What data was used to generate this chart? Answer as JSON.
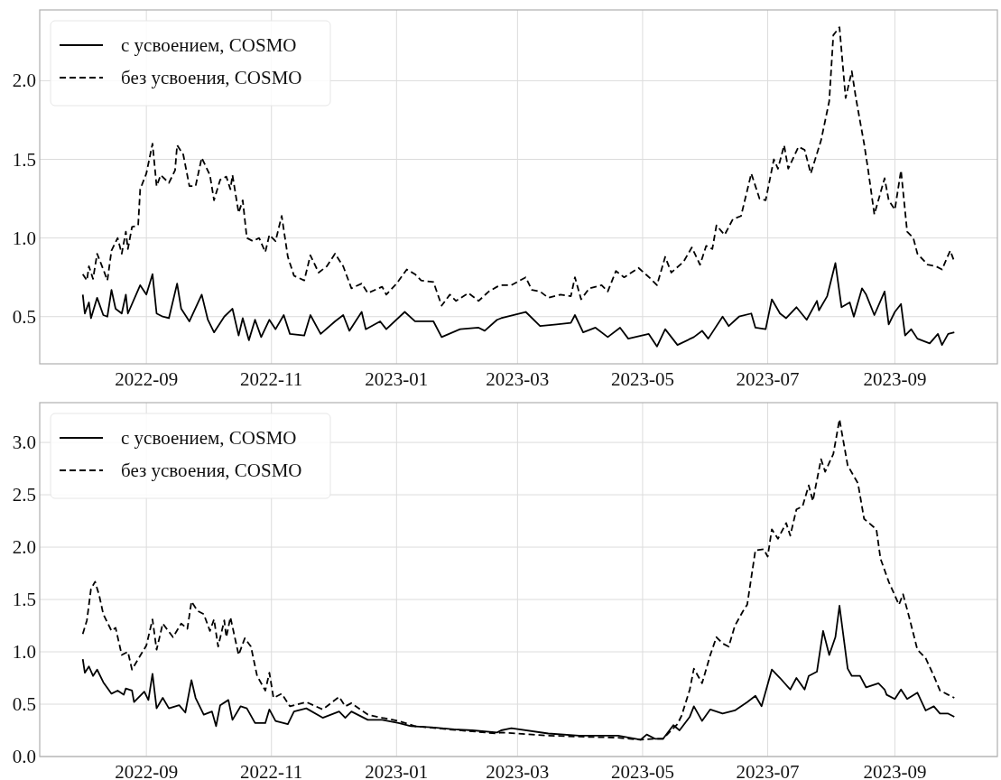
{
  "chart_data": [
    {
      "type": "line",
      "xlim": [
        "2022-07-11",
        "2023-10-21"
      ],
      "ylim": [
        0.2,
        2.45
      ],
      "xticks": [
        "2022-09",
        "2022-11",
        "2023-01",
        "2023-03",
        "2023-05",
        "2023-07",
        "2023-09"
      ],
      "yticks": [
        {
          "value": 0.5,
          "label": "0.5"
        },
        {
          "value": 1,
          "label": "1.0"
        },
        {
          "value": 1.5,
          "label": "1.5"
        },
        {
          "value": 2,
          "label": "2.0"
        }
      ],
      "grid": true,
      "legend": "top left",
      "series": [
        {
          "name": "с усвоением, COSMO",
          "color": "#000000",
          "line_style": "solid",
          "x": [
            "2022-08-01",
            "2022-08-02",
            "2022-08-04",
            "2022-08-05",
            "2022-08-08",
            "2022-08-11",
            "2022-08-13",
            "2022-08-15",
            "2022-08-17",
            "2022-08-20",
            "2022-08-22",
            "2022-08-23",
            "2022-08-29",
            "2022-09-01",
            "2022-09-04",
            "2022-09-06",
            "2022-09-09",
            "2022-09-12",
            "2022-09-16",
            "2022-09-18",
            "2022-09-22",
            "2022-09-28",
            "2022-10-01",
            "2022-10-04",
            "2022-10-09",
            "2022-10-13",
            "2022-10-16",
            "2022-10-18",
            "2022-10-21",
            "2022-10-24",
            "2022-10-27",
            "2022-10-31",
            "2022-11-03",
            "2022-11-07",
            "2022-11-10",
            "2022-11-17",
            "2022-11-20",
            "2022-11-25",
            "2022-12-02",
            "2022-12-06",
            "2022-12-09",
            "2022-12-15",
            "2022-12-17",
            "2022-12-24",
            "2022-12-27",
            "2023-01-05",
            "2023-01-10",
            "2023-01-19",
            "2023-01-23",
            "2023-02-01",
            "2023-02-10",
            "2023-02-13",
            "2023-02-19",
            "2023-02-21",
            "2023-03-05",
            "2023-03-12",
            "2023-03-20",
            "2023-03-27",
            "2023-03-29",
            "2023-04-02",
            "2023-04-08",
            "2023-04-14",
            "2023-04-20",
            "2023-04-24",
            "2023-05-04",
            "2023-05-08",
            "2023-05-12",
            "2023-05-18",
            "2023-05-26",
            "2023-05-30",
            "2023-06-02",
            "2023-06-09",
            "2023-06-12",
            "2023-06-17",
            "2023-06-23",
            "2023-06-25",
            "2023-06-30",
            "2023-07-03",
            "2023-07-07",
            "2023-07-10",
            "2023-07-15",
            "2023-07-20",
            "2023-07-25",
            "2023-07-26",
            "2023-07-30",
            "2023-08-03",
            "2023-08-06",
            "2023-08-10",
            "2023-08-12",
            "2023-08-16",
            "2023-08-18",
            "2023-08-22",
            "2023-08-27",
            "2023-08-29",
            "2023-09-01",
            "2023-09-04",
            "2023-09-06",
            "2023-09-09",
            "2023-09-12",
            "2023-09-18",
            "2023-09-22",
            "2023-09-24",
            "2023-09-27",
            "2023-09-30"
          ],
          "values": [
            0.64,
            0.52,
            0.59,
            0.49,
            0.62,
            0.51,
            0.5,
            0.67,
            0.55,
            0.52,
            0.64,
            0.52,
            0.7,
            0.64,
            0.77,
            0.52,
            0.5,
            0.49,
            0.71,
            0.55,
            0.47,
            0.64,
            0.48,
            0.4,
            0.5,
            0.55,
            0.38,
            0.49,
            0.35,
            0.48,
            0.37,
            0.48,
            0.42,
            0.51,
            0.39,
            0.38,
            0.51,
            0.39,
            0.47,
            0.51,
            0.41,
            0.53,
            0.42,
            0.47,
            0.42,
            0.53,
            0.47,
            0.47,
            0.37,
            0.42,
            0.43,
            0.41,
            0.48,
            0.49,
            0.53,
            0.44,
            0.45,
            0.46,
            0.51,
            0.4,
            0.43,
            0.37,
            0.43,
            0.36,
            0.39,
            0.31,
            0.42,
            0.32,
            0.37,
            0.41,
            0.36,
            0.5,
            0.44,
            0.5,
            0.52,
            0.43,
            0.42,
            0.61,
            0.52,
            0.49,
            0.56,
            0.48,
            0.6,
            0.54,
            0.63,
            0.84,
            0.56,
            0.59,
            0.5,
            0.68,
            0.64,
            0.51,
            0.66,
            0.45,
            0.53,
            0.58,
            0.38,
            0.42,
            0.36,
            0.33,
            0.39,
            0.32,
            0.39,
            0.4
          ]
        },
        {
          "name": "без усвоения, COSMO",
          "color": "#000000",
          "line_style": "dashed",
          "x": [
            "2022-08-01",
            "2022-08-03",
            "2022-08-04",
            "2022-08-06",
            "2022-08-08",
            "2022-08-11",
            "2022-08-13",
            "2022-08-15",
            "2022-08-18",
            "2022-08-20",
            "2022-08-22",
            "2022-08-23",
            "2022-08-25",
            "2022-08-28",
            "2022-08-29",
            "2022-09-01",
            "2022-09-04",
            "2022-09-06",
            "2022-09-08",
            "2022-09-12",
            "2022-09-15",
            "2022-09-16",
            "2022-09-19",
            "2022-09-22",
            "2022-09-25",
            "2022-09-28",
            "2022-10-02",
            "2022-10-04",
            "2022-10-07",
            "2022-10-10",
            "2022-10-12",
            "2022-10-13",
            "2022-10-16",
            "2022-10-18",
            "2022-10-20",
            "2022-10-23",
            "2022-10-26",
            "2022-10-29",
            "2022-10-31",
            "2022-11-03",
            "2022-11-06",
            "2022-11-09",
            "2022-11-12",
            "2022-11-17",
            "2022-11-20",
            "2022-11-24",
            "2022-11-28",
            "2022-12-02",
            "2022-12-06",
            "2022-12-10",
            "2022-12-15",
            "2022-12-18",
            "2022-12-25",
            "2022-12-27",
            "2023-01-01",
            "2023-01-06",
            "2023-01-10",
            "2023-01-13",
            "2023-01-19",
            "2023-01-23",
            "2023-01-27",
            "2023-01-30",
            "2023-02-05",
            "2023-02-10",
            "2023-02-15",
            "2023-02-19",
            "2023-02-21",
            "2023-02-26",
            "2023-03-05",
            "2023-03-08",
            "2023-03-12",
            "2023-03-16",
            "2023-03-22",
            "2023-03-27",
            "2023-03-29",
            "2023-04-01",
            "2023-04-05",
            "2023-04-11",
            "2023-04-14",
            "2023-04-18",
            "2023-04-22",
            "2023-04-29",
            "2023-05-05",
            "2023-05-08",
            "2023-05-12",
            "2023-05-15",
            "2023-05-21",
            "2023-05-25",
            "2023-05-29",
            "2023-06-01",
            "2023-06-04",
            "2023-06-06",
            "2023-06-10",
            "2023-06-14",
            "2023-06-18",
            "2023-06-23",
            "2023-06-27",
            "2023-06-30",
            "2023-07-04",
            "2023-07-06",
            "2023-07-09",
            "2023-07-11",
            "2023-07-16",
            "2023-07-19",
            "2023-07-22",
            "2023-07-27",
            "2023-07-31",
            "2023-08-02",
            "2023-08-05",
            "2023-08-08",
            "2023-08-11",
            "2023-08-13",
            "2023-08-17",
            "2023-08-19",
            "2023-08-22",
            "2023-08-27",
            "2023-08-29",
            "2023-09-01",
            "2023-09-04",
            "2023-09-07",
            "2023-09-10",
            "2023-09-12",
            "2023-09-17",
            "2023-09-21",
            "2023-09-24",
            "2023-09-28",
            "2023-09-30"
          ],
          "values": [
            0.77,
            0.73,
            0.82,
            0.74,
            0.9,
            0.8,
            0.73,
            0.92,
            1.0,
            0.9,
            1.04,
            0.93,
            1.07,
            1.08,
            1.31,
            1.41,
            1.6,
            1.33,
            1.4,
            1.35,
            1.43,
            1.59,
            1.53,
            1.33,
            1.33,
            1.51,
            1.4,
            1.24,
            1.37,
            1.39,
            1.31,
            1.4,
            1.16,
            1.24,
            1.0,
            0.98,
            1.0,
            0.91,
            1.02,
            0.98,
            1.14,
            0.88,
            0.76,
            0.73,
            0.89,
            0.78,
            0.82,
            0.9,
            0.82,
            0.68,
            0.71,
            0.65,
            0.69,
            0.64,
            0.71,
            0.8,
            0.77,
            0.73,
            0.72,
            0.57,
            0.64,
            0.6,
            0.65,
            0.6,
            0.66,
            0.69,
            0.7,
            0.7,
            0.75,
            0.67,
            0.66,
            0.62,
            0.64,
            0.63,
            0.75,
            0.61,
            0.68,
            0.7,
            0.66,
            0.79,
            0.75,
            0.81,
            0.74,
            0.7,
            0.88,
            0.78,
            0.85,
            0.94,
            0.83,
            0.95,
            0.93,
            1.08,
            1.02,
            1.12,
            1.14,
            1.41,
            1.25,
            1.24,
            1.5,
            1.44,
            1.59,
            1.44,
            1.58,
            1.56,
            1.41,
            1.62,
            1.87,
            2.29,
            2.34,
            1.89,
            2.06,
            1.89,
            1.6,
            1.43,
            1.15,
            1.38,
            1.24,
            1.18,
            1.43,
            1.04,
            1.0,
            0.9,
            0.83,
            0.82,
            0.8,
            0.92,
            0.85
          ]
        }
      ]
    },
    {
      "type": "line",
      "xlim": [
        "2022-07-11",
        "2023-10-21"
      ],
      "ylim": [
        0,
        3.38
      ],
      "xticks": [
        "2022-09",
        "2022-11",
        "2023-01",
        "2023-03",
        "2023-05",
        "2023-07",
        "2023-09"
      ],
      "yticks": [
        {
          "value": 0,
          "label": "0.0"
        },
        {
          "value": 0.5,
          "label": "0.5"
        },
        {
          "value": 1,
          "label": "1.0"
        },
        {
          "value": 1.5,
          "label": "1.5"
        },
        {
          "value": 2,
          "label": "2.0"
        },
        {
          "value": 2.5,
          "label": "2.5"
        },
        {
          "value": 3,
          "label": "3.0"
        }
      ],
      "grid": true,
      "legend": "top left",
      "series": [
        {
          "name": "с усвоением, COSMO",
          "color": "#000000",
          "line_style": "solid",
          "x": [
            "2022-08-01",
            "2022-08-02",
            "2022-08-04",
            "2022-08-06",
            "2022-08-08",
            "2022-08-11",
            "2022-08-15",
            "2022-08-18",
            "2022-08-21",
            "2022-08-22",
            "2022-08-25",
            "2022-08-26",
            "2022-08-31",
            "2022-09-02",
            "2022-09-04",
            "2022-09-06",
            "2022-09-09",
            "2022-09-12",
            "2022-09-17",
            "2022-09-20",
            "2022-09-23",
            "2022-09-25",
            "2022-09-29",
            "2022-10-03",
            "2022-10-05",
            "2022-10-07",
            "2022-10-11",
            "2022-10-13",
            "2022-10-17",
            "2022-10-20",
            "2022-10-24",
            "2022-10-29",
            "2022-10-31",
            "2022-11-03",
            "2022-11-09",
            "2022-11-12",
            "2022-11-18",
            "2022-11-26",
            "2022-12-04",
            "2022-12-07",
            "2022-12-10",
            "2022-12-18",
            "2022-12-25",
            "2023-01-02",
            "2023-01-08",
            "2023-01-18",
            "2023-01-29",
            "2023-02-07",
            "2023-02-19",
            "2023-02-21",
            "2023-02-26",
            "2023-03-16",
            "2023-03-31",
            "2023-04-19",
            "2023-04-30",
            "2023-05-03",
            "2023-05-07",
            "2023-05-11",
            "2023-05-16",
            "2023-05-19",
            "2023-05-24",
            "2023-05-26",
            "2023-05-30",
            "2023-06-03",
            "2023-06-09",
            "2023-06-15",
            "2023-06-21",
            "2023-06-25",
            "2023-06-28",
            "2023-07-03",
            "2023-07-07",
            "2023-07-12",
            "2023-07-15",
            "2023-07-19",
            "2023-07-21",
            "2023-07-25",
            "2023-07-28",
            "2023-07-31",
            "2023-08-03",
            "2023-08-05",
            "2023-08-09",
            "2023-08-11",
            "2023-08-15",
            "2023-08-18",
            "2023-08-24",
            "2023-08-27",
            "2023-08-28",
            "2023-09-01",
            "2023-09-04",
            "2023-09-07",
            "2023-09-12",
            "2023-09-16",
            "2023-09-20",
            "2023-09-23",
            "2023-09-27",
            "2023-09-30"
          ],
          "values": [
            0.93,
            0.8,
            0.86,
            0.77,
            0.83,
            0.71,
            0.6,
            0.63,
            0.59,
            0.65,
            0.63,
            0.52,
            0.62,
            0.54,
            0.79,
            0.46,
            0.56,
            0.46,
            0.49,
            0.42,
            0.73,
            0.56,
            0.4,
            0.43,
            0.29,
            0.49,
            0.54,
            0.35,
            0.48,
            0.46,
            0.32,
            0.32,
            0.45,
            0.34,
            0.31,
            0.43,
            0.46,
            0.37,
            0.43,
            0.37,
            0.43,
            0.35,
            0.35,
            0.32,
            0.29,
            0.28,
            0.26,
            0.25,
            0.23,
            0.25,
            0.27,
            0.22,
            0.2,
            0.2,
            0.16,
            0.21,
            0.17,
            0.17,
            0.3,
            0.25,
            0.38,
            0.48,
            0.34,
            0.45,
            0.41,
            0.44,
            0.52,
            0.58,
            0.48,
            0.83,
            0.75,
            0.64,
            0.75,
            0.64,
            0.77,
            0.81,
            1.2,
            0.97,
            1.14,
            1.44,
            0.84,
            0.77,
            0.77,
            0.66,
            0.7,
            0.64,
            0.59,
            0.55,
            0.64,
            0.55,
            0.61,
            0.44,
            0.48,
            0.41,
            0.41,
            0.38
          ]
        },
        {
          "name": "без усвоения, COSMO",
          "color": "#000000",
          "line_style": "dashed",
          "x": [
            "2022-08-01",
            "2022-08-03",
            "2022-08-05",
            "2022-08-07",
            "2022-08-09",
            "2022-08-11",
            "2022-08-15",
            "2022-08-17",
            "2022-08-20",
            "2022-08-23",
            "2022-08-25",
            "2022-08-28",
            "2022-09-01",
            "2022-09-04",
            "2022-09-06",
            "2022-09-09",
            "2022-09-14",
            "2022-09-18",
            "2022-09-21",
            "2022-09-23",
            "2022-09-26",
            "2022-09-29",
            "2022-10-02",
            "2022-10-04",
            "2022-10-06",
            "2022-10-09",
            "2022-10-10",
            "2022-10-12",
            "2022-10-16",
            "2022-10-19",
            "2022-10-22",
            "2022-10-25",
            "2022-10-29",
            "2022-10-31",
            "2022-11-02",
            "2022-11-06",
            "2022-11-10",
            "2022-11-18",
            "2022-11-26",
            "2022-12-04",
            "2022-12-07",
            "2022-12-10",
            "2022-12-18",
            "2022-12-25",
            "2023-01-02",
            "2023-01-10",
            "2023-01-26",
            "2023-02-07",
            "2023-02-19",
            "2023-02-21",
            "2023-03-16",
            "2023-03-31",
            "2023-04-19",
            "2023-04-30",
            "2023-05-07",
            "2023-05-11",
            "2023-05-18",
            "2023-05-20",
            "2023-05-24",
            "2023-05-26",
            "2023-05-30",
            "2023-06-03",
            "2023-06-06",
            "2023-06-09",
            "2023-06-12",
            "2023-06-15",
            "2023-06-19",
            "2023-06-21",
            "2023-06-25",
            "2023-06-29",
            "2023-07-01",
            "2023-07-03",
            "2023-07-06",
            "2023-07-10",
            "2023-07-12",
            "2023-07-15",
            "2023-07-18",
            "2023-07-21",
            "2023-07-23",
            "2023-07-27",
            "2023-07-29",
            "2023-08-02",
            "2023-08-05",
            "2023-08-09",
            "2023-08-14",
            "2023-08-17",
            "2023-08-23",
            "2023-08-25",
            "2023-08-29",
            "2023-09-03",
            "2023-09-05",
            "2023-09-08",
            "2023-09-12",
            "2023-09-16",
            "2023-09-20",
            "2023-09-23",
            "2023-09-27",
            "2023-09-30"
          ],
          "values": [
            1.17,
            1.3,
            1.6,
            1.67,
            1.54,
            1.36,
            1.2,
            1.23,
            0.97,
            1.0,
            0.83,
            0.93,
            1.06,
            1.31,
            1.02,
            1.27,
            1.14,
            1.27,
            1.22,
            1.48,
            1.39,
            1.36,
            1.2,
            1.31,
            1.05,
            1.3,
            1.14,
            1.33,
            0.97,
            1.13,
            1.05,
            0.77,
            0.63,
            0.8,
            0.56,
            0.6,
            0.48,
            0.52,
            0.45,
            0.57,
            0.48,
            0.51,
            0.4,
            0.37,
            0.34,
            0.29,
            0.26,
            0.24,
            0.22,
            0.23,
            0.2,
            0.19,
            0.18,
            0.16,
            0.17,
            0.17,
            0.31,
            0.39,
            0.64,
            0.84,
            0.7,
            0.97,
            1.14,
            1.08,
            1.05,
            1.25,
            1.39,
            1.45,
            1.97,
            1.98,
            1.91,
            2.17,
            2.08,
            2.23,
            2.11,
            2.36,
            2.39,
            2.59,
            2.44,
            2.84,
            2.72,
            2.89,
            3.22,
            2.78,
            2.61,
            2.27,
            2.17,
            1.89,
            1.67,
            1.45,
            1.55,
            1.33,
            1.02,
            0.94,
            0.77,
            0.63,
            0.59,
            0.56
          ]
        }
      ]
    }
  ]
}
